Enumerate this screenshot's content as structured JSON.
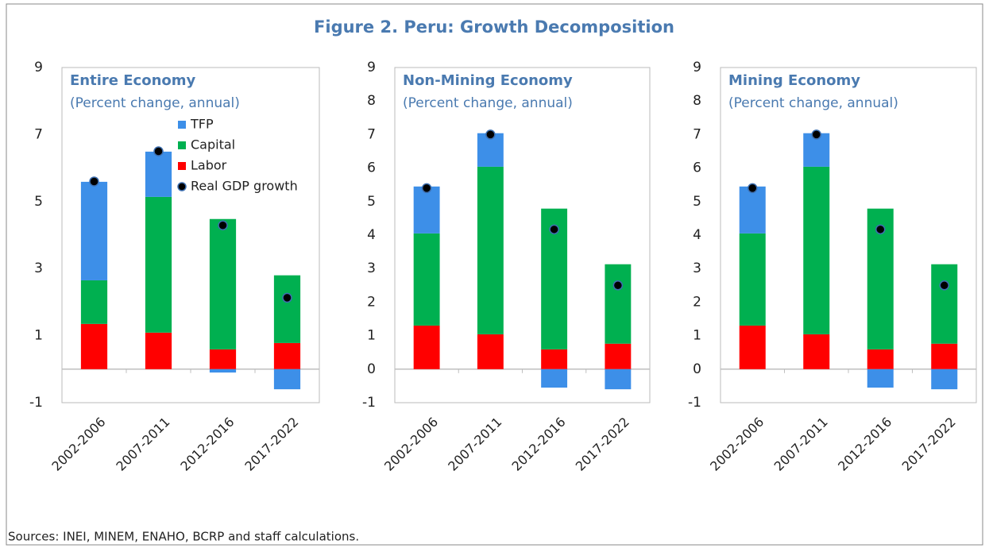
{
  "title": "Figure 2. Peru: Growth Decomposition",
  "note": "Sources: INEI, MINEM, ENAHO, BCRP and staff calculations.",
  "chart_data": [
    {
      "type": "bar",
      "stacked": true,
      "title": "Entire Economy",
      "subtitle": "(Percent change, annual)",
      "categories": [
        "2002-2006",
        "2007-2011",
        "2012-2016",
        "2017-2022"
      ],
      "series": [
        {
          "name": "TFP",
          "color": "#3d8fe8",
          "values": [
            2.94,
            1.35,
            -0.1,
            -0.6
          ]
        },
        {
          "name": "Capital",
          "color": "#00b050",
          "values": [
            1.3,
            4.05,
            3.89,
            2.02
          ]
        },
        {
          "name": "Labor",
          "color": "#ff0000",
          "values": [
            1.35,
            1.09,
            0.59,
            0.78
          ]
        },
        {
          "name": "Real GDP growth",
          "type": "scatter",
          "color": "#000000",
          "values": [
            5.6,
            6.5,
            4.29,
            2.13
          ]
        }
      ],
      "ylim": [
        -1,
        9
      ],
      "yticks": [
        -1,
        1,
        3,
        5,
        7,
        9
      ],
      "legend": "upper right"
    },
    {
      "type": "bar",
      "stacked": true,
      "title": "Non-Mining Economy",
      "subtitle": "(Percent change, annual)",
      "categories": [
        "2002-2006",
        "2007-2011",
        "2012-2016",
        "2017-2022"
      ],
      "series": [
        {
          "color": "#3d8fe8",
          "values": [
            1.4,
            1.0,
            -0.55,
            -0.6
          ]
        },
        {
          "color": "#00b050",
          "values": [
            2.75,
            5.0,
            4.2,
            2.37
          ]
        },
        {
          "color": "#ff0000",
          "values": [
            1.3,
            1.04,
            0.59,
            0.76
          ]
        },
        {
          "type": "scatter",
          "color": "#000000",
          "values": [
            5.4,
            7.0,
            4.17,
            2.5
          ]
        }
      ],
      "ylim": [
        -1,
        9
      ],
      "yticks": [
        -1,
        0,
        1,
        2,
        3,
        4,
        5,
        6,
        7,
        8,
        9
      ]
    },
    {
      "type": "bar",
      "stacked": true,
      "title": "Mining Economy",
      "subtitle": "(Percent change, annual)",
      "categories": [
        "2002-2006",
        "2007-2011",
        "2012-2016",
        "2017-2022"
      ],
      "series": [
        {
          "color": "#3d8fe8",
          "values": [
            1.4,
            1.0,
            -0.55,
            -0.6
          ]
        },
        {
          "color": "#00b050",
          "values": [
            2.75,
            5.0,
            4.2,
            2.37
          ]
        },
        {
          "color": "#ff0000",
          "values": [
            1.3,
            1.04,
            0.59,
            0.76
          ]
        },
        {
          "type": "scatter",
          "color": "#000000",
          "values": [
            5.4,
            7.0,
            4.17,
            2.5
          ]
        }
      ],
      "ylim": [
        -1,
        9
      ],
      "yticks": [
        -1,
        0,
        1,
        2,
        3,
        4,
        5,
        6,
        7,
        8,
        9
      ]
    }
  ]
}
